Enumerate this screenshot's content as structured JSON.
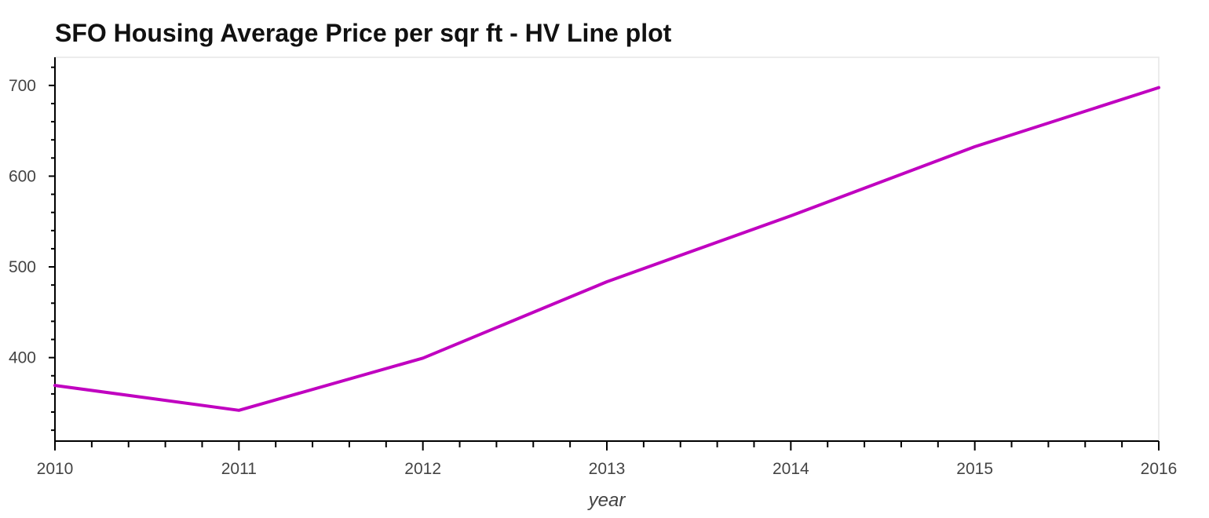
{
  "chart_data": {
    "type": "line",
    "title": "SFO Housing Average Price per sqr ft - HV Line plot",
    "xlabel": "year",
    "ylabel": "",
    "x": [
      2010,
      2011,
      2012,
      2013,
      2014,
      2015,
      2016
    ],
    "series": [
      {
        "values": [
          369.3,
          341.9,
          399.4,
          483.6,
          556.3,
          632.5,
          697.6
        ]
      }
    ],
    "xlim": [
      2010,
      2016
    ],
    "ylim": [
      308,
      731
    ],
    "xticks": [
      "2010",
      "2011",
      "2012",
      "2013",
      "2014",
      "2015",
      "2016"
    ],
    "yticks": [
      "400",
      "500",
      "600",
      "700"
    ],
    "grid": false,
    "line_color": "#c000c0"
  }
}
